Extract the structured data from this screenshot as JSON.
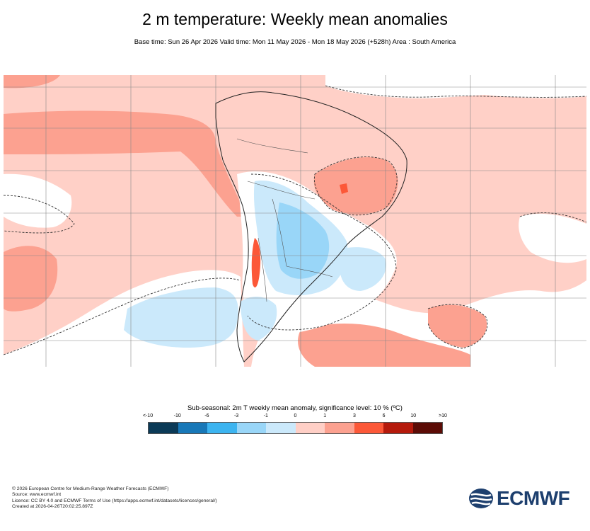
{
  "title": "2 m temperature: Weekly mean anomalies",
  "subtitle": "Base time: Sun 26 Apr 2026 Valid time: Mon 11 May 2026 - Mon 18 May 2026 (+528h) Area : South America",
  "colorbar": {
    "title": "Sub-seasonal: 2m T weekly mean anomaly, significance level: 10 % (ºC)",
    "ticks": [
      "<-10",
      "-10",
      "-6",
      "-3",
      "-1",
      "0",
      "1",
      "3",
      "6",
      "10",
      ">10"
    ],
    "colors": [
      "#0b3a57",
      "#1878b8",
      "#3cb4f0",
      "#99d6f8",
      "#cbe9fb",
      "#ffcfc6",
      "#fca190",
      "#fc5838",
      "#b51a0c",
      "#5c0c06"
    ]
  },
  "footer": {
    "line1": "© 2026 European Centre for Medium-Range Weather Forecasts (ECMWF)",
    "line2": "Source: www.ecmwf.int",
    "line3": "Licence: CC BY 4.0 and ECMWF Terms of Use (https://apps.ecmwf.int/datasets/licences/general/)",
    "line4": "Created at 2026-04-26T20:02:25.897Z"
  },
  "logo": {
    "text": "ECMWF",
    "color": "#1d3f6e"
  },
  "map_colors": {
    "background": "#ffd0c7",
    "warm1": "#fca190",
    "warm2": "#fc5838",
    "cold1": "#cbe9fb",
    "cold2": "#99d6f8",
    "neutral": "#ffffff"
  }
}
